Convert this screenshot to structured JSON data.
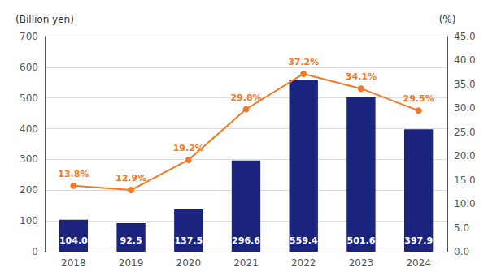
{
  "chart_data": {
    "type": "bar",
    "categories": [
      "2018",
      "2019",
      "2020",
      "2021",
      "2022",
      "2023",
      "2024"
    ],
    "ylabel": "(Billion yen)",
    "y2label": "(%)",
    "ylim": [
      0,
      700
    ],
    "yticks": [
      0,
      100,
      200,
      300,
      400,
      500,
      600,
      700
    ],
    "y2lim": [
      0,
      45.0
    ],
    "y2ticks": [
      {
        "value": 0,
        "label": "0.0"
      },
      {
        "value": 5,
        "label": "5.0"
      },
      {
        "value": 10,
        "label": "10.0"
      },
      {
        "value": 15,
        "label": "15.0"
      },
      {
        "value": 20,
        "label": "20.0"
      },
      {
        "value": 25,
        "label": "25.0"
      },
      {
        "value": 30,
        "label": "30.0"
      },
      {
        "value": 35,
        "label": "35.0"
      },
      {
        "value": 40,
        "label": "40.0"
      },
      {
        "value": 45,
        "label": "45.0"
      }
    ],
    "grid": true,
    "data_labels": true,
    "series": [
      {
        "type": "bar",
        "color": "#1a237e",
        "values": [
          104.0,
          92.5,
          137.5,
          296.6,
          559.4,
          501.6,
          397.9
        ],
        "value_labels": [
          "104.0",
          "92.5",
          "137.5",
          "296.6",
          "559.4",
          "501.6",
          "397.9"
        ]
      },
      {
        "type": "line",
        "axis": "y2",
        "color": "#f47920",
        "marker": "circle",
        "values": [
          13.8,
          12.9,
          19.2,
          29.8,
          37.2,
          34.1,
          29.5
        ],
        "value_labels": [
          "13.8%",
          "12.9%",
          "19.2%",
          "29.8%",
          "37.2%",
          "34.1%",
          "29.5%"
        ]
      }
    ]
  }
}
